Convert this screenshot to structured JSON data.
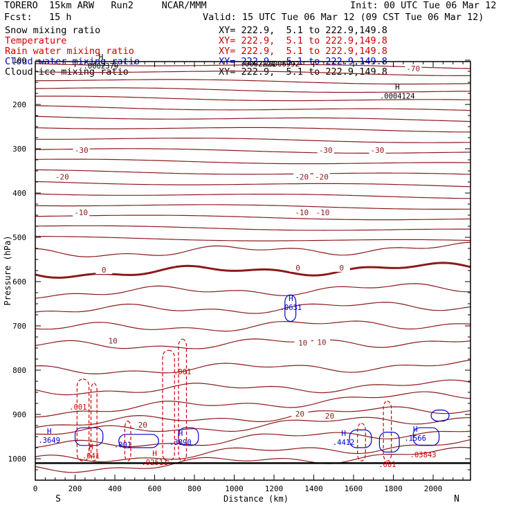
{
  "header": {
    "model": "TORERO  15km ARW   Run2     NCAR/MMM",
    "init": "Init: 00 UTC Tue 06 Mar 12",
    "fcst": "Fcst:   15 h",
    "valid": "Valid: 15 UTC Tue 06 Mar 12 (09 CST Tue 06 Mar 12)"
  },
  "legend": [
    {
      "name": "Snow mixing ratio",
      "color": "#000000",
      "xy": "XY= 222.9,  5.1 to 222.9,149.8"
    },
    {
      "name": "Temperature",
      "color": "#cc0000",
      "xy": "XY= 222.9,  5.1 to 222.9,149.8"
    },
    {
      "name": "Rain water mixing ratio",
      "color": "#cc0000",
      "xy": "XY= 222.9,  5.1 to 222.9,149.8"
    },
    {
      "name": "Cloud water mixing ratio",
      "color": "#0000cc",
      "xy": "XY= 222.9,  5.1 to 222.9,149.8"
    },
    {
      "name": "Cloud ice mixing ratio",
      "color": "#000000",
      "xy": "XY= 222.9,  5.1 to 222.9,149.8"
    }
  ],
  "chart_data": {
    "type": "line",
    "title": "Vertical cross section",
    "xlabel": "Distance (km)",
    "ylabel": "Pressure (hPa)",
    "xlim": [
      0,
      2190
    ],
    "ylim": [
      1050,
      100
    ],
    "x_ticks": [
      "0",
      "200",
      "400",
      "600",
      "800",
      "1000",
      "1200",
      "1400",
      "1600",
      "1800",
      "2000"
    ],
    "y_ticks": [
      "1000",
      "900",
      "800",
      "700",
      "600",
      "500",
      "400",
      "300",
      "200",
      "100"
    ],
    "endpoints": {
      "left": "S",
      "right": "N"
    },
    "temperature_labels": [
      {
        "x": 232,
        "p": 305,
        "text": "-30"
      },
      {
        "x": 1460,
        "p": 305,
        "text": "-30"
      },
      {
        "x": 1720,
        "p": 305,
        "text": "-30"
      },
      {
        "x": 135,
        "p": 365,
        "text": "-20"
      },
      {
        "x": 1340,
        "p": 365,
        "text": "-20"
      },
      {
        "x": 1440,
        "p": 365,
        "text": "-20"
      },
      {
        "x": 230,
        "p": 445,
        "text": "-10"
      },
      {
        "x": 1340,
        "p": 445,
        "text": "-10"
      },
      {
        "x": 1445,
        "p": 445,
        "text": "-10"
      },
      {
        "x": 345,
        "p": 575,
        "text": "0"
      },
      {
        "x": 1320,
        "p": 570,
        "text": "0"
      },
      {
        "x": 1540,
        "p": 570,
        "text": "0"
      },
      {
        "x": 390,
        "p": 735,
        "text": "10"
      },
      {
        "x": 1345,
        "p": 740,
        "text": "10"
      },
      {
        "x": 1440,
        "p": 738,
        "text": "10"
      },
      {
        "x": 540,
        "p": 925,
        "text": "20"
      },
      {
        "x": 1330,
        "p": 900,
        "text": "20"
      },
      {
        "x": 1480,
        "p": 905,
        "text": "20"
      },
      {
        "x": 1900,
        "p": 120,
        "text": "-70"
      }
    ],
    "extrema_labels": [
      {
        "x": 1820,
        "p": 173,
        "marker": "H",
        "value": ".0004124",
        "color": "#000000"
      },
      {
        "x": 1285,
        "p": 650,
        "marker": "H",
        "value": ".0631",
        "color": "#0000cc"
      },
      {
        "x": 70,
        "p": 950,
        "marker": "H",
        "value": ".3649",
        "color": "#0000cc"
      },
      {
        "x": 730,
        "p": 955,
        "marker": "H",
        "value": ".3890",
        "color": "#0000cc"
      },
      {
        "x": 1550,
        "p": 955,
        "marker": "H",
        "value": ".4412",
        "color": "#0000cc"
      },
      {
        "x": 1910,
        "p": 945,
        "marker": "H",
        "value": ".1566",
        "color": "#0000cc"
      },
      {
        "x": 280,
        "p": 985,
        "marker": "H",
        "value": ".041",
        "color": "#cc0000"
      },
      {
        "x": 600,
        "p": 1000,
        "marker": "H",
        "value": ".92511",
        "color": "#cc0000"
      },
      {
        "x": 1950,
        "p": 983,
        "marker": "",
        "value": ".03843",
        "color": "#cc0000"
      },
      {
        "x": 215,
        "p": 875,
        "marker": "",
        "value": ".001",
        "color": "#cc0000"
      },
      {
        "x": 740,
        "p": 795,
        "marker": "",
        "value": ".001",
        "color": "#cc0000"
      },
      {
        "x": 1770,
        "p": 1005,
        "marker": "",
        "value": ".001",
        "color": "#cc0000"
      },
      {
        "x": 440,
        "p": 960,
        "marker": "",
        "value": ".001",
        "color": "#0000cc"
      },
      {
        "x": 330,
        "p": 105,
        "marker": "H",
        "value": ".0002379",
        "color": "#000000"
      },
      {
        "x": 1240,
        "p": 100,
        "marker": "",
        "value": ".0006992",
        "color": "#000000"
      },
      {
        "x": 1120,
        "p": 100,
        "marker": "",
        "value": ".0002227",
        "color": "#000000"
      }
    ]
  }
}
